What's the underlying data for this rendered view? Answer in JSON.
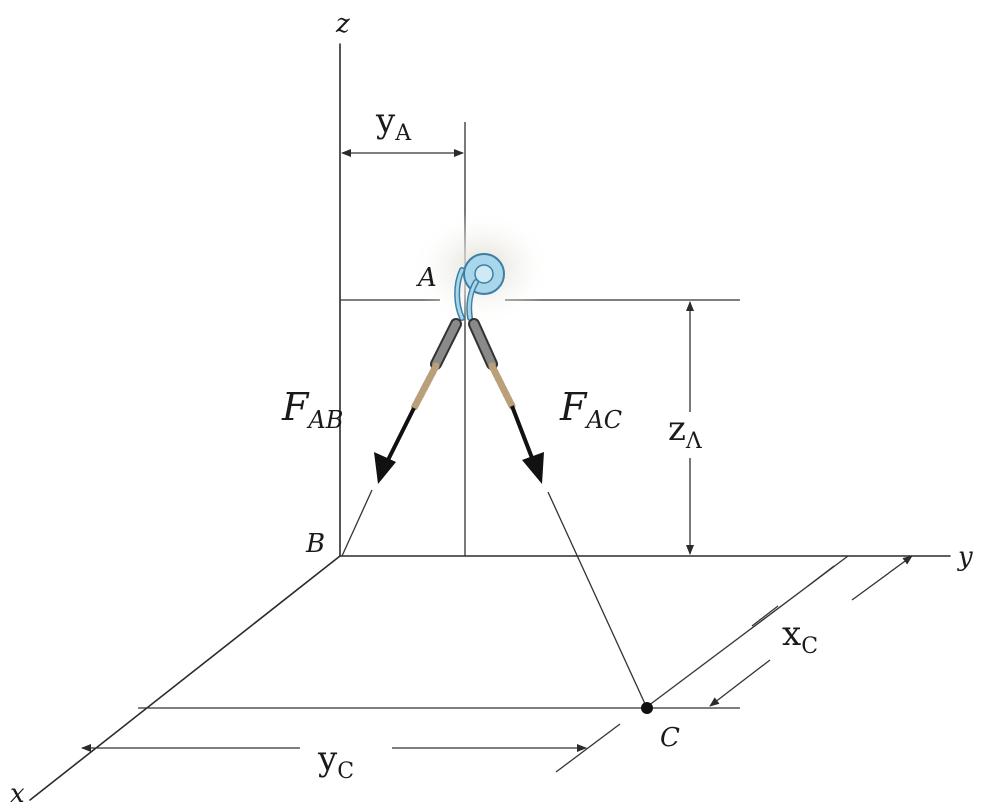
{
  "axes": {
    "x": "x",
    "y": "y",
    "z": "z"
  },
  "points": {
    "A": "A",
    "B": "B",
    "C": "C"
  },
  "forces": {
    "ab": {
      "main": "F",
      "sub": "AB"
    },
    "ac": {
      "main": "F",
      "sub": "AC"
    }
  },
  "dimensions": {
    "yA": {
      "main": "y",
      "sub": "A"
    },
    "zA": {
      "main": "z",
      "sub": "Λ"
    },
    "xC": {
      "main": "x",
      "sub": "C"
    },
    "yC": {
      "main": "y",
      "sub": "C"
    }
  },
  "colors": {
    "line": "#2b2b2b",
    "arrow": "#111111",
    "rope": "#b9a07a",
    "hook": "#9fd0e6",
    "hook_outline": "#3d7fa3",
    "glow": "#e4e2d6"
  }
}
